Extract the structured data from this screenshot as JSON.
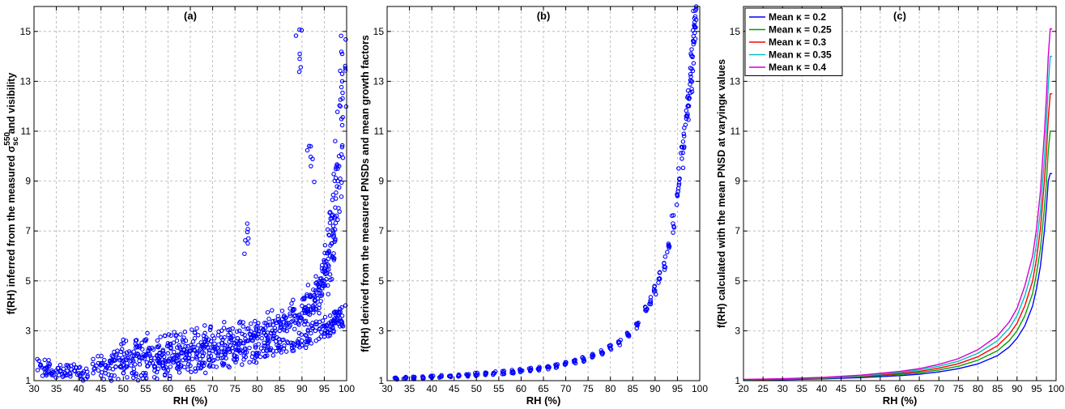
{
  "chart_data": [
    {
      "type": "scatter",
      "title": "(a)",
      "xlabel": "RH (%)",
      "ylabel": "f(RH) inferred from the measured σ",
      "ylabel_sup": "550",
      "ylabel_sub": "sc",
      "ylabel_tail": " and visibility",
      "xlim": [
        30,
        100
      ],
      "ylim": [
        1,
        16
      ],
      "xticks": [
        30,
        35,
        40,
        45,
        50,
        55,
        60,
        65,
        70,
        75,
        80,
        85,
        90,
        95,
        100
      ],
      "yticks": [
        1,
        3,
        5,
        7,
        9,
        11,
        13,
        15
      ],
      "grid": true,
      "marker_color": "#0000ff",
      "series": [
        {
          "x": [
            31.5,
            32.5,
            33,
            34,
            35,
            36,
            37,
            38,
            39,
            40,
            41,
            42,
            44,
            45,
            46,
            47,
            48,
            49,
            50,
            51,
            52,
            53,
            54,
            55,
            56,
            57,
            58,
            59,
            60,
            61,
            62,
            63,
            64,
            65,
            66,
            67,
            68,
            69,
            70,
            71,
            72,
            73,
            74,
            75,
            76,
            77,
            78,
            79,
            80,
            81,
            82,
            83,
            84,
            85,
            86,
            87,
            88,
            89,
            89.5,
            90,
            91,
            91.5,
            92,
            92.5,
            93,
            93.5,
            94,
            94.5,
            95,
            95.5,
            96,
            96.3,
            96.6,
            97,
            97.3,
            97.6,
            98,
            98.3,
            98.6,
            99
          ],
          "y": [
            1.6,
            1.5,
            1.5,
            1.4,
            1.4,
            1.4,
            1.3,
            1.3,
            1.4,
            1.3,
            1.3,
            1.2,
            1.6,
            1.7,
            1.3,
            1.8,
            1.8,
            1.9,
            1.8,
            1.9,
            2.0,
            2.0,
            1.9,
            2.0,
            2.0,
            1.9,
            2.0,
            2.1,
            2.1,
            2.0,
            2.0,
            2.1,
            2.1,
            2.2,
            2.2,
            2.2,
            2.3,
            2.3,
            2.2,
            2.3,
            2.3,
            2.4,
            2.4,
            2.5,
            2.5,
            2.5,
            2.6,
            2.6,
            2.7,
            2.7,
            2.8,
            2.9,
            3.0,
            3.0,
            3.1,
            3.3,
            3.4,
            3.6,
            14.1,
            3.7,
            3.8,
            4.0,
            9.6,
            4.0,
            4.2,
            4.3,
            4.5,
            4.7,
            5.0,
            5.3,
            5.6,
            6.0,
            6.5,
            7.0,
            7.5,
            8.3,
            9.0,
            10.0,
            12.0,
            14.1
          ]
        },
        {
          "x": [
            45,
            48,
            50,
            52,
            54,
            55,
            57,
            59,
            60,
            62,
            63,
            65,
            67,
            68,
            70,
            72,
            73,
            75,
            77,
            78,
            79,
            80,
            82,
            83,
            85,
            86,
            88,
            89,
            90,
            91,
            92,
            93,
            94,
            95,
            95.5,
            96,
            96.5,
            97,
            97.5,
            98,
            98.5,
            99
          ],
          "y": [
            1.2,
            1.2,
            1.3,
            1.3,
            1.2,
            1.3,
            1.4,
            1.5,
            1.4,
            1.5,
            1.6,
            1.6,
            1.7,
            1.6,
            1.8,
            1.9,
            1.9,
            2.0,
            2.0,
            6.7,
            2.1,
            2.1,
            2.2,
            2.3,
            2.3,
            2.4,
            2.5,
            2.5,
            2.6,
            2.8,
            2.9,
            3.0,
            3.1,
            3.2,
            3.2,
            3.3,
            3.3,
            3.4,
            3.4,
            3.5,
            3.5,
            3.6
          ]
        },
        {
          "x": [
            50,
            53,
            55,
            58,
            60,
            62,
            64,
            66,
            68,
            70,
            72,
            74,
            76,
            78,
            80,
            82,
            84,
            86,
            88,
            90,
            92,
            94,
            95,
            96,
            97,
            98,
            99
          ],
          "y": [
            2.5,
            2.4,
            2.6,
            2.4,
            2.5,
            2.6,
            2.6,
            2.7,
            2.8,
            2.8,
            3.0,
            2.9,
            3.0,
            3.1,
            3.2,
            3.3,
            3.4,
            3.6,
            3.8,
            4.0,
            4.4,
            4.9,
            5.5,
            6.2,
            7.2,
            9.5,
            13.0
          ]
        }
      ]
    },
    {
      "type": "scatter",
      "title": "(b)",
      "xlabel": "RH (%)",
      "ylabel": "f(RH) derived from the measured PNSDs and mean growth factors",
      "xlim": [
        30,
        100
      ],
      "ylim": [
        1,
        16
      ],
      "xticks": [
        30,
        35,
        40,
        45,
        50,
        55,
        60,
        65,
        70,
        75,
        80,
        85,
        90,
        95,
        100
      ],
      "yticks": [
        1,
        3,
        5,
        7,
        9,
        11,
        13,
        15
      ],
      "grid": true,
      "marker_color": "#0000ff",
      "series": [
        {
          "x": [
            32,
            34,
            36,
            38,
            40,
            42,
            44,
            46,
            48,
            50,
            52,
            54,
            56,
            58,
            60,
            62,
            64,
            66,
            68,
            70,
            72,
            74,
            76,
            78,
            80,
            82,
            84,
            86,
            88,
            89,
            90,
            91,
            92,
            93,
            94,
            95,
            95.5,
            96,
            96.5,
            97,
            97.3,
            97.6,
            98,
            98.2,
            98.4,
            98.6,
            98.8,
            99,
            99.2
          ],
          "y": [
            1.1,
            1.1,
            1.12,
            1.13,
            1.15,
            1.16,
            1.18,
            1.2,
            1.22,
            1.25,
            1.27,
            1.3,
            1.33,
            1.36,
            1.4,
            1.44,
            1.48,
            1.53,
            1.6,
            1.67,
            1.75,
            1.85,
            1.97,
            2.12,
            2.3,
            2.55,
            2.85,
            3.25,
            3.8,
            4.15,
            4.6,
            5.1,
            5.7,
            6.4,
            7.3,
            8.4,
            9.1,
            9.9,
            10.8,
            11.5,
            12.0,
            12.3,
            13.0,
            13.5,
            14.0,
            14.6,
            15.2,
            15.6,
            15.9
          ]
        }
      ]
    },
    {
      "type": "line",
      "title": "(c)",
      "xlabel": "RH (%)",
      "ylabel": "f(RH) calculated with the mean PNSD at varyingκ values",
      "xlim": [
        20,
        100
      ],
      "ylim": [
        1,
        16
      ],
      "xticks": [
        20,
        25,
        30,
        35,
        40,
        45,
        50,
        55,
        60,
        65,
        70,
        75,
        80,
        85,
        90,
        95,
        100
      ],
      "yticks": [
        1,
        3,
        5,
        7,
        9,
        11,
        13,
        15
      ],
      "grid": true,
      "legend_position": "top-left",
      "x": [
        20,
        30,
        40,
        50,
        60,
        65,
        70,
        75,
        80,
        85,
        88,
        90,
        92,
        94,
        95,
        96,
        97,
        97.5,
        98,
        98.5,
        99
      ],
      "series": [
        {
          "name": "Mean κ = 0.2",
          "color": "#0000ff",
          "values": [
            1.02,
            1.04,
            1.07,
            1.12,
            1.2,
            1.26,
            1.35,
            1.48,
            1.67,
            2.0,
            2.35,
            2.7,
            3.2,
            4.0,
            4.7,
            5.6,
            7.0,
            7.9,
            9.0,
            9.3,
            9.3
          ]
        },
        {
          "name": "Mean κ = 0.25",
          "color": "#00a000",
          "values": [
            1.03,
            1.05,
            1.09,
            1.15,
            1.25,
            1.32,
            1.43,
            1.58,
            1.82,
            2.2,
            2.6,
            3.0,
            3.6,
            4.5,
            5.3,
            6.3,
            7.9,
            8.9,
            10.2,
            11.0,
            11.0
          ]
        },
        {
          "name": "Mean κ = 0.3",
          "color": "#ff0000",
          "values": [
            1.03,
            1.06,
            1.1,
            1.17,
            1.29,
            1.37,
            1.5,
            1.68,
            1.96,
            2.4,
            2.85,
            3.3,
            4.0,
            5.0,
            5.9,
            7.1,
            9.0,
            10.1,
            11.5,
            12.5,
            12.5
          ]
        },
        {
          "name": "Mean κ = 0.35",
          "color": "#00c0c0",
          "values": [
            1.04,
            1.07,
            1.11,
            1.19,
            1.33,
            1.43,
            1.58,
            1.78,
            2.1,
            2.6,
            3.1,
            3.6,
            4.4,
            5.5,
            6.5,
            7.8,
            9.9,
            11.2,
            12.8,
            14.0,
            14.0
          ]
        },
        {
          "name": "Mean κ = 0.4",
          "color": "#d000d0",
          "values": [
            1.05,
            1.08,
            1.13,
            1.22,
            1.37,
            1.48,
            1.65,
            1.88,
            2.24,
            2.8,
            3.35,
            3.9,
            4.8,
            6.0,
            7.1,
            8.6,
            10.9,
            12.3,
            14.0,
            15.1,
            15.1
          ]
        }
      ]
    }
  ]
}
